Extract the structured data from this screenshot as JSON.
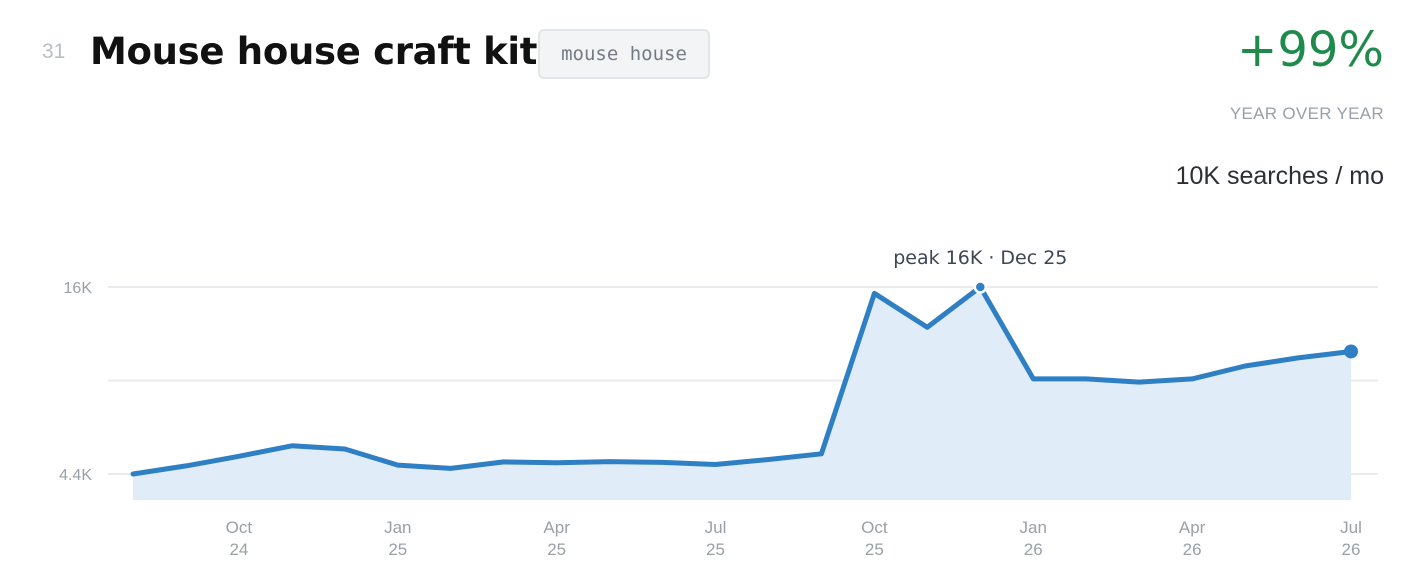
{
  "header": {
    "rank": "31",
    "title": "Mouse house craft kits",
    "tag": "mouse house",
    "yoy_value": "+99%",
    "yoy_label": "YEAR OVER YEAR",
    "volume": "10K searches / mo"
  },
  "colors": {
    "line": "#2f7fc4",
    "area": "#e0ecf7",
    "positive": "#1e8a4c",
    "grid": "#e9ebee"
  },
  "chart_data": {
    "type": "area",
    "x": [
      "2024-08",
      "2024-09",
      "2024-10",
      "2024-11",
      "2024-12",
      "2025-01",
      "2025-02",
      "2025-03",
      "2025-04",
      "2025-05",
      "2025-06",
      "2025-07",
      "2025-08",
      "2025-09",
      "2025-10",
      "2025-11",
      "2025-12",
      "2026-01",
      "2026-02",
      "2026-03",
      "2026-04",
      "2026-05",
      "2026-06",
      "2026-07"
    ],
    "values": [
      4400,
      4900,
      5500,
      6150,
      5950,
      4950,
      4750,
      5150,
      5100,
      5170,
      5120,
      4990,
      5300,
      5650,
      15600,
      13500,
      16000,
      10300,
      10300,
      10100,
      10300,
      11100,
      11600,
      12000
    ],
    "ylim": [
      4400,
      16000
    ],
    "yticks": [
      {
        "value": 16000,
        "label": "16K"
      },
      {
        "value": 10200,
        "label": ""
      },
      {
        "value": 4400,
        "label": "4.4K"
      }
    ],
    "xticks": [
      {
        "index": 2,
        "month": "Oct",
        "year": "24"
      },
      {
        "index": 5,
        "month": "Jan",
        "year": "25"
      },
      {
        "index": 8,
        "month": "Apr",
        "year": "25"
      },
      {
        "index": 11,
        "month": "Jul",
        "year": "25"
      },
      {
        "index": 14,
        "month": "Oct",
        "year": "25"
      },
      {
        "index": 17,
        "month": "Jan",
        "year": "26"
      },
      {
        "index": 20,
        "month": "Apr",
        "year": "26"
      },
      {
        "index": 23,
        "month": "Jul",
        "year": "26"
      }
    ],
    "peak": {
      "index": 16,
      "label": "peak 16K · Dec 25"
    },
    "grid": true
  }
}
